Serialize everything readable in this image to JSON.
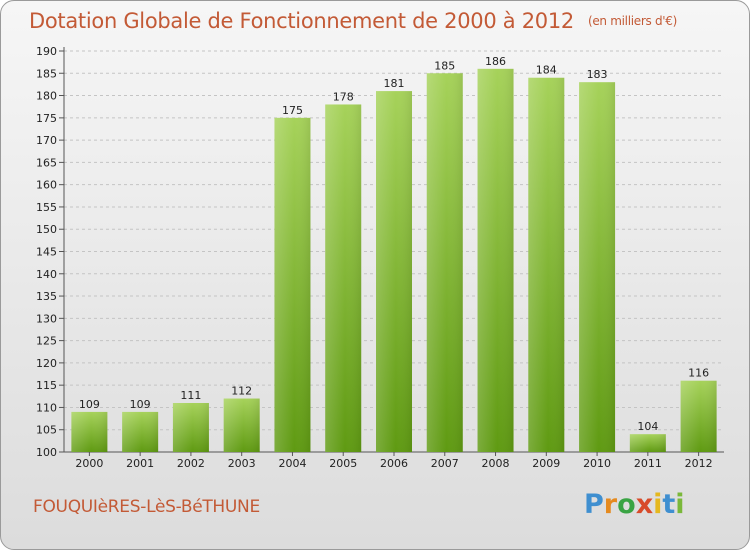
{
  "header": {
    "title": "Dotation Globale de Fonctionnement de 2000 à 2012",
    "unit": "(en milliers d'€)"
  },
  "footer": {
    "commune": "FOUQUIèRES-LèS-BéTHUNE",
    "logo_letters": [
      "P",
      "r",
      "o",
      "x",
      "i",
      "t",
      "i"
    ]
  },
  "colors": {
    "title": "#c35a36",
    "bar_light": "#a6d25a",
    "bar_dark": "#5f9a12"
  },
  "chart_data": {
    "type": "bar",
    "categories": [
      "2000",
      "2001",
      "2002",
      "2003",
      "2004",
      "2005",
      "2006",
      "2007",
      "2008",
      "2009",
      "2010",
      "2011",
      "2012"
    ],
    "values": [
      109,
      109,
      111,
      112,
      175,
      178,
      181,
      185,
      186,
      184,
      183,
      104,
      116
    ],
    "ylim": [
      100,
      190
    ],
    "yticks": [
      100,
      105,
      110,
      115,
      120,
      125,
      130,
      135,
      140,
      145,
      150,
      155,
      160,
      165,
      170,
      175,
      180,
      185,
      190
    ],
    "grid": true,
    "legend": "none"
  }
}
